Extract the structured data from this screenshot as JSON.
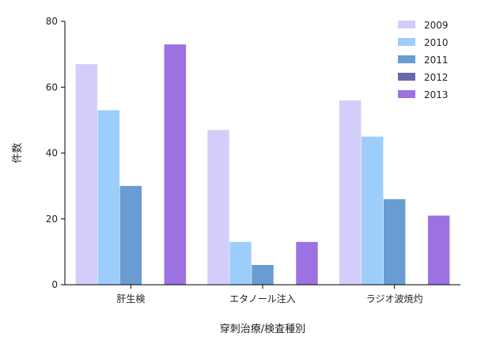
{
  "chart_data": {
    "type": "bar",
    "categories": [
      "肝生検",
      "エタノール注入",
      "ラジオ波焼灼"
    ],
    "series": [
      {
        "name": "2009",
        "color": "#d4cdfa",
        "values": [
          67,
          47,
          56
        ]
      },
      {
        "name": "2010",
        "color": "#9dcdfb",
        "values": [
          53,
          13,
          45
        ]
      },
      {
        "name": "2011",
        "color": "#6a9bd3",
        "values": [
          30,
          6,
          26
        ]
      },
      {
        "name": "2012",
        "color": "#6b67a8",
        "values": [
          0,
          0,
          0
        ]
      },
      {
        "name": "2013",
        "color": "#9c72e2",
        "values": [
          73,
          13,
          21
        ]
      }
    ],
    "xlabel": "穿刺治療/検査種別",
    "ylabel": "件数",
    "ylim": [
      0,
      80
    ],
    "yticks": [
      0,
      20,
      40,
      60,
      80
    ],
    "grid": false,
    "legend_position": "top-right"
  }
}
